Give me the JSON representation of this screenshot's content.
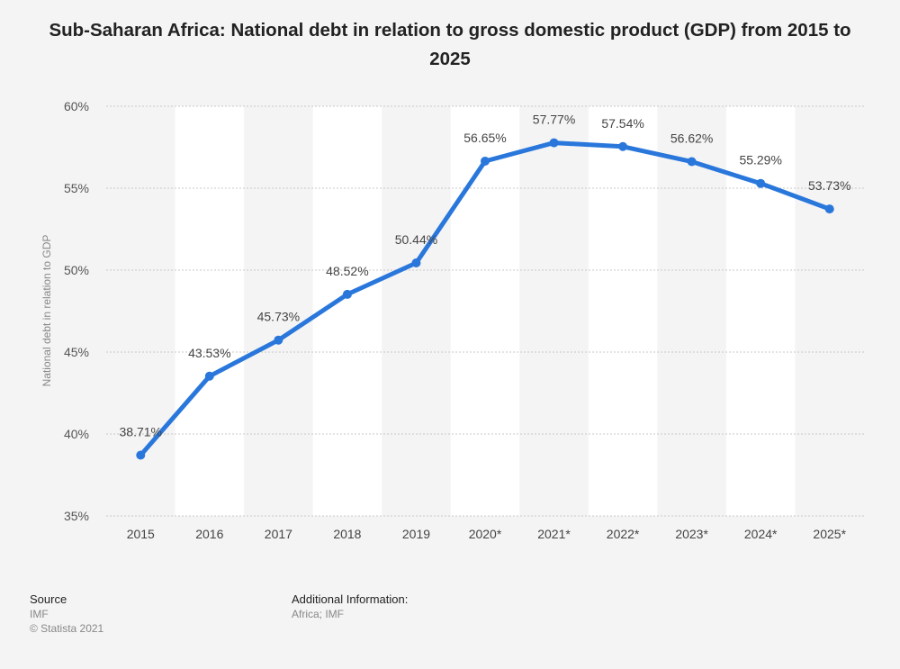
{
  "chart_data": {
    "type": "line",
    "title": "Sub-Saharan Africa: National debt in relation to gross domestic product (GDP) from 2015 to 2025",
    "ylabel": "National debt in relation to GDP",
    "xlabel": "",
    "categories": [
      "2015",
      "2016",
      "2017",
      "2018",
      "2019",
      "2020*",
      "2021*",
      "2022*",
      "2023*",
      "2024*",
      "2025*"
    ],
    "values": [
      38.71,
      43.53,
      45.73,
      48.52,
      50.44,
      56.65,
      57.77,
      57.54,
      56.62,
      55.29,
      53.73
    ],
    "data_labels": [
      "38.71%",
      "43.53%",
      "45.73%",
      "48.52%",
      "50.44%",
      "56.65%",
      "57.77%",
      "57.54%",
      "56.62%",
      "55.29%",
      "53.73%"
    ],
    "y_ticks": [
      35,
      40,
      45,
      50,
      55,
      60
    ],
    "y_tick_labels": [
      "35%",
      "40%",
      "45%",
      "50%",
      "55%",
      "60%"
    ],
    "ylim": [
      35,
      60
    ],
    "grid": true,
    "line_color": "#2a77dc"
  },
  "footer": {
    "source_heading": "Source",
    "source_name": "IMF",
    "copyright": "© Statista 2021",
    "info_heading": "Additional Information:",
    "info_text": "Africa; IMF"
  }
}
